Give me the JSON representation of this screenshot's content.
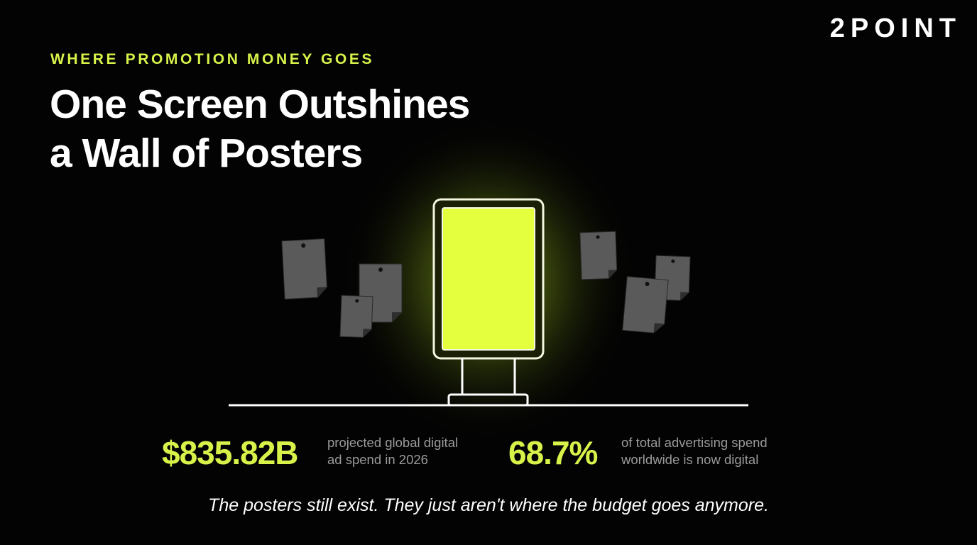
{
  "brand": "2POINT",
  "eyebrow": "WHERE PROMOTION MONEY GOES",
  "title": [
    "One Screen Outshines",
    "a Wall of Posters"
  ],
  "stats": [
    {
      "value": "$835.82B",
      "description": [
        "projected global digital",
        "ad spend in 2026"
      ]
    },
    {
      "value": "68.7%",
      "description": [
        "of total advertising spend",
        "worldwide is now digital"
      ]
    }
  ],
  "caption": "The posters still exist. They just aren't where the budget goes anymore."
}
